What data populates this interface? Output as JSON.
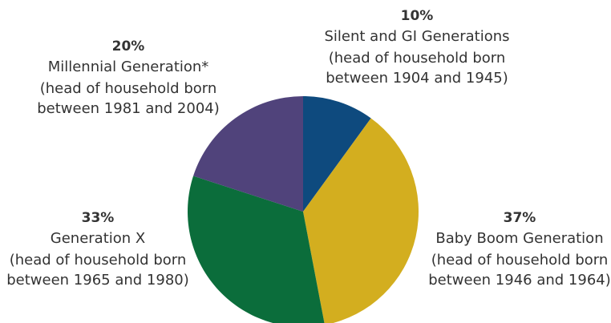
{
  "chart_data": {
    "type": "pie",
    "categories": [
      "Silent and GI Generations",
      "Baby Boom Generation",
      "Generation X",
      "Millennial Generation*"
    ],
    "values": [
      10,
      37,
      33,
      20
    ],
    "value_labels": [
      "10%",
      "37%",
      "33%",
      "20%"
    ],
    "descriptions": [
      [
        "(head of household born",
        "between 1904 and 1945)"
      ],
      [
        "(head of household born",
        "between 1946 and 1964)"
      ],
      [
        "(head of household born",
        "between 1965 and 1980)"
      ],
      [
        "(head of household born",
        "between 1981 and 2004)"
      ]
    ],
    "colors": [
      "#0e4a7e",
      "#d3ae1f",
      "#0b6d3b",
      "#50437b"
    ]
  }
}
